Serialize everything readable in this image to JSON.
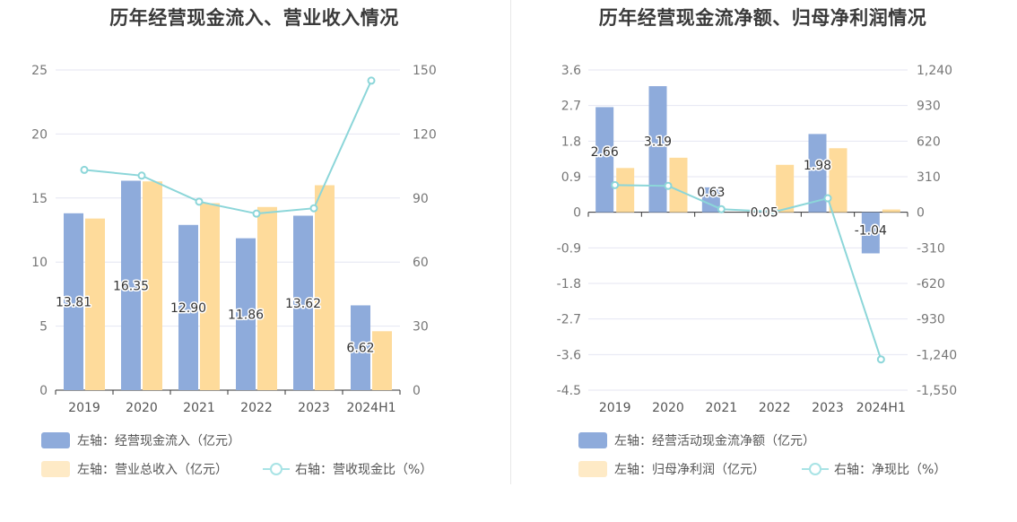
{
  "chart_data": [
    {
      "type": "bar+line",
      "title": "历年经营现金流入、营业收入情况",
      "categories": [
        "2019",
        "2020",
        "2021",
        "2022",
        "2023",
        "2024H1"
      ],
      "left_axis": {
        "min": 0,
        "max": 25,
        "ticks": [
          "0",
          "5",
          "10",
          "15",
          "20",
          "25"
        ]
      },
      "right_axis": {
        "min": 0,
        "max": 150,
        "ticks": [
          "0",
          "30",
          "60",
          "90",
          "120",
          "150"
        ]
      },
      "series": [
        {
          "name": "左轴：经营现金流入（亿元）",
          "axis": "left",
          "kind": "bar",
          "color": "#8eabdb",
          "values": [
            13.81,
            16.35,
            12.9,
            11.86,
            13.62,
            6.62
          ],
          "labels": [
            "13.81",
            "16.35",
            "12.90",
            "11.86",
            "13.62",
            "6.62"
          ]
        },
        {
          "name": "左轴：营业总收入（亿元）",
          "axis": "left",
          "kind": "bar",
          "color": "#fedb9b",
          "values": [
            13.4,
            16.3,
            14.6,
            14.3,
            16.0,
            4.6
          ]
        },
        {
          "name": "右轴：营收现金比（%）",
          "axis": "right",
          "kind": "line",
          "color": "#8cd6d9",
          "values": [
            103.2,
            100.5,
            88.3,
            82.7,
            85.2,
            145.0
          ]
        }
      ]
    },
    {
      "type": "bar+line",
      "title": "历年经营现金流净额、归母净利润情况",
      "categories": [
        "2019",
        "2020",
        "2021",
        "2022",
        "2023",
        "2024H1"
      ],
      "left_axis": {
        "min": -4.5,
        "max": 3.6,
        "ticks": [
          "-4.5",
          "-3.6",
          "-2.7",
          "-1.8",
          "-0.9",
          "0",
          "0.9",
          "1.8",
          "2.7",
          "3.6"
        ]
      },
      "right_axis": {
        "min": -1550,
        "max": 1240,
        "ticks": [
          "-1,550",
          "-1,240",
          "-930",
          "-620",
          "-310",
          "0",
          "310",
          "620",
          "930",
          "1,240"
        ]
      },
      "series": [
        {
          "name": "左轴：经营活动现金流净额（亿元）",
          "axis": "left",
          "kind": "bar",
          "color": "#8eabdb",
          "values": [
            2.66,
            3.19,
            0.63,
            0.05,
            1.98,
            -1.04
          ],
          "labels": [
            "2.66",
            "3.19",
            "0.63",
            "0.05",
            "1.98",
            "-1.04"
          ]
        },
        {
          "name": "左轴：归母净利润（亿元）",
          "axis": "left",
          "kind": "bar",
          "color": "#fedb9b",
          "values": [
            1.12,
            1.38,
            0.0,
            1.2,
            1.62,
            0.07
          ]
        },
        {
          "name": "右轴：净现比（%）",
          "axis": "right",
          "kind": "line",
          "color": "#8cd6d9",
          "values": [
            237,
            230,
            27,
            4,
            122,
            -1282
          ]
        }
      ]
    }
  ]
}
